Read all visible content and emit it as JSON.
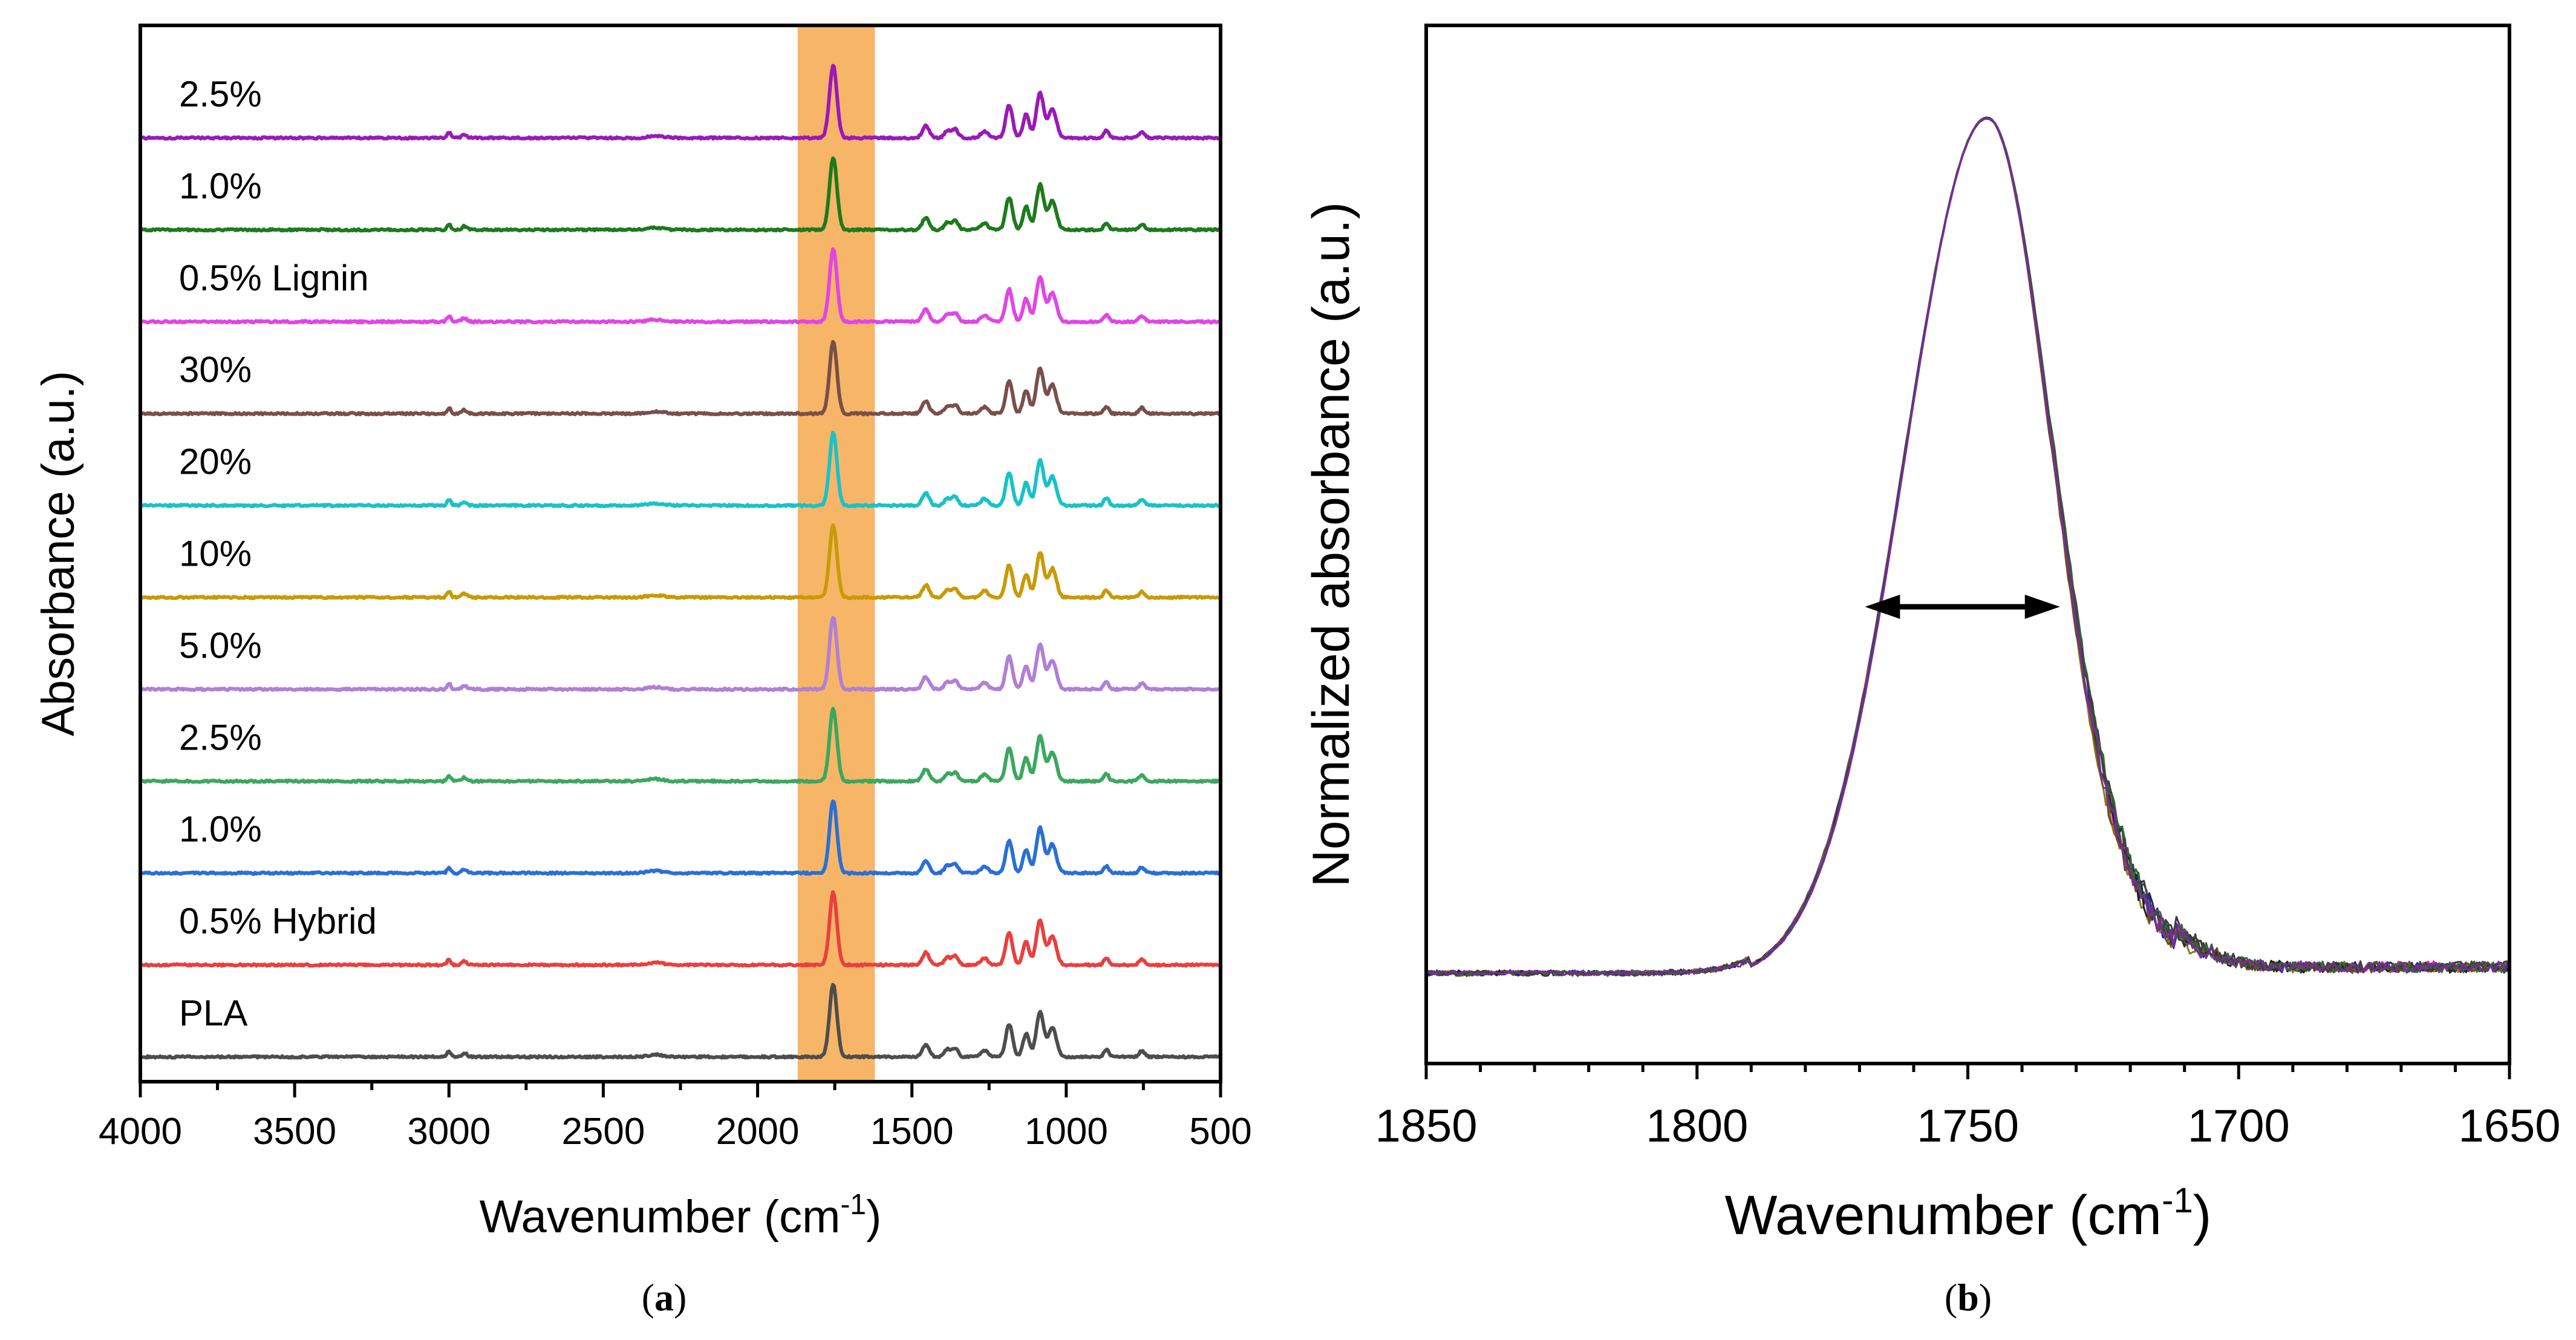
{
  "chart_data": [
    {
      "panel": "a",
      "type": "line",
      "xlabel": "Wavenumber (cm",
      "xlabel_sup": "-1",
      "xlabel_end": ")",
      "ylabel": "Absorbance (a.u.)",
      "xlim": [
        4000,
        500
      ],
      "x_reversed": true,
      "xticks": [
        4000,
        3500,
        3000,
        2500,
        2000,
        1500,
        1000,
        500
      ],
      "highlight_band": {
        "x": [
          1870,
          1620
        ],
        "color": "#f6a84e"
      },
      "series": [
        {
          "name": "PLA",
          "color": "#4d4d4d"
        },
        {
          "name": "0.5% Hybrid",
          "color": "#e8403f"
        },
        {
          "name": "1.0%",
          "color": "#2a6fd6"
        },
        {
          "name": "2.5%",
          "color": "#3aa85e"
        },
        {
          "name": "5.0%",
          "color": "#b07fd6"
        },
        {
          "name": "10%",
          "color": "#c99a06"
        },
        {
          "name": "20%",
          "color": "#19c2c7"
        },
        {
          "name": "30%",
          "color": "#7a4f4a"
        },
        {
          "name": "0.5% Lignin",
          "color": "#e045e6"
        },
        {
          "name": "1.0%",
          "color": "#1d7a1d"
        },
        {
          "name": "2.5%",
          "color": "#9a19b8"
        }
      ],
      "peaks_cm-1": [
        3000,
        2950,
        2330,
        1755,
        1455,
        1385,
        1360,
        1265,
        1185,
        1130,
        1085,
        1045,
        870,
        755
      ],
      "caption": "a"
    },
    {
      "panel": "b",
      "type": "line",
      "xlabel": "Wavenumber (cm",
      "xlabel_sup": "-1",
      "xlabel_end": ")",
      "ylabel": "Normalized absorbance (a.u.)",
      "xlim": [
        1850,
        1650
      ],
      "x_reversed": true,
      "xticks": [
        1850,
        1800,
        1750,
        1700,
        1650
      ],
      "peak_center": 1747,
      "fwhm_arrow": {
        "from": 1769,
        "to": 1733
      },
      "series_colors": [
        "#2b2b2b",
        "#1a1ad6",
        "#e020c8",
        "#8a7a1a",
        "#3a3a3a",
        "#555555",
        "#222222",
        "#6a4a2a",
        "#2d6e2d",
        "#404040",
        "#7a2aa0"
      ],
      "caption": "b"
    }
  ]
}
